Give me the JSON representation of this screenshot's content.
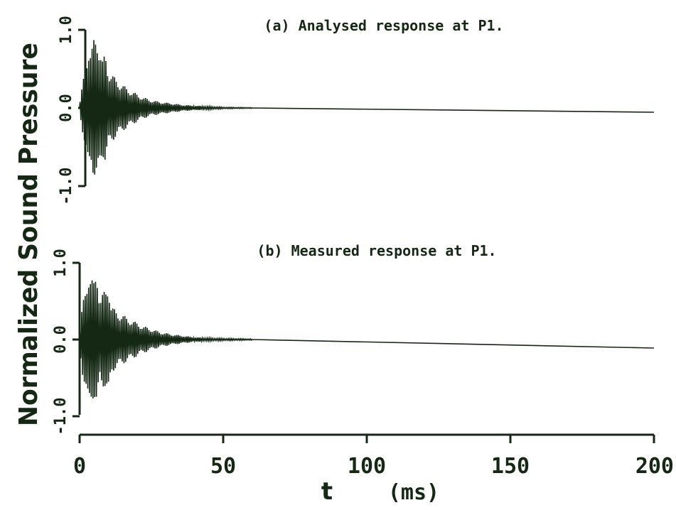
{
  "figure": {
    "ylabel": "Normalized Sound Pressure",
    "xlabel_symbol": "t",
    "xlabel_unit": "(ms)",
    "ink_color": "#142814"
  },
  "chart_data": {
    "type": "line",
    "shared_x_axis": {
      "label": "t (ms)",
      "range": [
        0,
        200
      ],
      "ticks": [
        0,
        50,
        100,
        150,
        200
      ],
      "tick_labels": [
        "0",
        "50",
        "100",
        "150",
        "200"
      ]
    },
    "panels": [
      {
        "id": "a",
        "title": "(a) Analysed response at P1.",
        "ylim": [
          -1.0,
          1.0
        ],
        "yticks": [
          1.0,
          0.0,
          -1.0
        ],
        "ytick_labels": [
          "1.0",
          "0.0",
          "-1.0"
        ],
        "series": [
          {
            "x": [
              0,
              1,
              2,
              3,
              4,
              5,
              6,
              7,
              8,
              9,
              10,
              11,
              12,
              14,
              16,
              18,
              20,
              22,
              25,
              28,
              32,
              36,
              40,
              45,
              50,
              60,
              80,
              100,
              150,
              200
            ],
            "envelope": [
              0.05,
              0.3,
              0.55,
              0.85,
              0.7,
              0.9,
              1.0,
              0.8,
              0.6,
              0.72,
              0.5,
              0.45,
              0.4,
              0.33,
              0.27,
              0.22,
              0.18,
              0.14,
              0.1,
              0.08,
              0.06,
              0.04,
              0.03,
              0.02,
              0.01,
              0.005,
              0.003,
              0.0,
              0.0,
              0.0
            ]
          }
        ]
      },
      {
        "id": "b",
        "title": "(b) Measured response at P1.",
        "ylim": [
          -1.0,
          1.0
        ],
        "yticks": [
          1.0,
          0.0,
          -1.0
        ],
        "ytick_labels": [
          "1.0",
          "0.0",
          "-1.0"
        ],
        "series": [
          {
            "x": [
              0,
              1,
              2,
              3,
              4,
              5,
              6,
              7,
              8,
              9,
              10,
              11,
              12,
              14,
              16,
              18,
              20,
              22,
              25,
              28,
              32,
              36,
              40,
              45,
              50,
              60,
              80,
              100,
              150,
              200
            ],
            "envelope": [
              0.1,
              0.45,
              0.7,
              0.95,
              0.8,
              0.75,
              1.0,
              0.55,
              0.6,
              0.65,
              0.8,
              0.45,
              0.4,
              0.35,
              0.3,
              0.26,
              0.22,
              0.18,
              0.14,
              0.1,
              0.07,
              0.05,
              0.03,
              0.02,
              0.015,
              0.008,
              0.004,
              0.0,
              0.0,
              0.0
            ]
          }
        ]
      }
    ]
  }
}
